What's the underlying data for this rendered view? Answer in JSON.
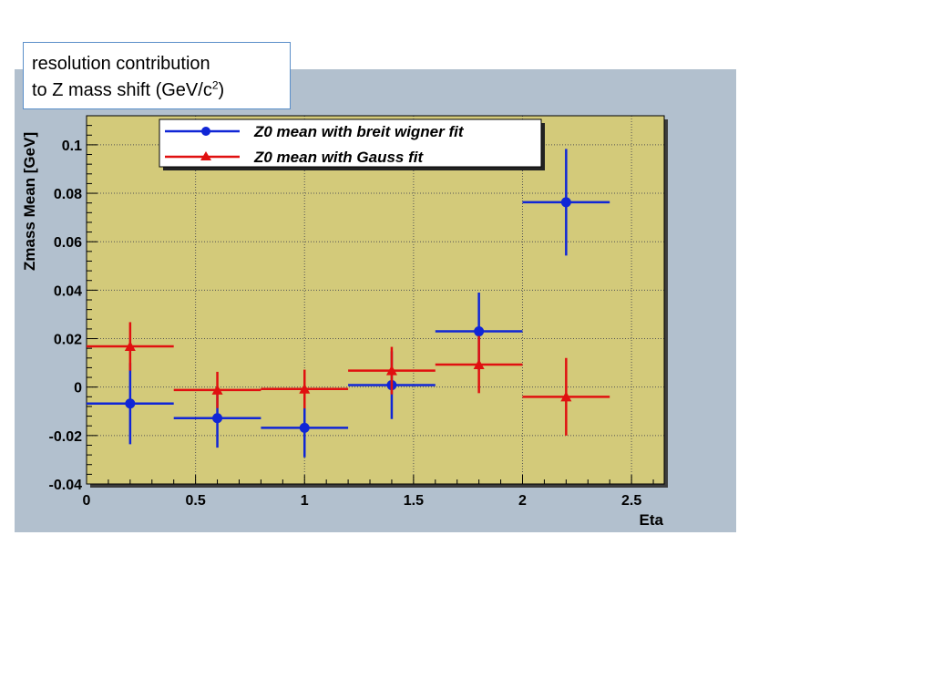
{
  "callout": {
    "line1": "resolution contribution",
    "line2_pre": "to Z mass shift (GeV/c",
    "line2_sup": "2",
    "line2_post": ")"
  },
  "colors": {
    "frame": "#b2c0ce",
    "plot_bg": "#d3ca7a",
    "blue": "#1026d6",
    "red": "#e01010"
  },
  "chart_data": {
    "type": "scatter",
    "xlabel": "Eta",
    "ylabel": "Zmass Mean [GeV]",
    "xlim": [
      0,
      2.65
    ],
    "ylim": [
      -0.04,
      0.112
    ],
    "xticks": [
      0,
      0.5,
      1,
      1.5,
      2,
      2.5
    ],
    "xtick_labels": [
      "0",
      "0.5",
      "1",
      "1.5",
      "2",
      "2.5"
    ],
    "yticks": [
      -0.04,
      -0.02,
      0,
      0.02,
      0.04,
      0.06,
      0.08,
      0.1
    ],
    "ytick_labels": [
      "-0.04",
      "-0.02",
      "0",
      "0.02",
      "0.04",
      "0.06",
      "0.08",
      "0.1"
    ],
    "grid": true,
    "legend_position": "top",
    "series": [
      {
        "name": "Z0 mean with breit wigner fit",
        "marker": "circle",
        "x": [
          0.2,
          0.6,
          1.0,
          1.4,
          1.8,
          2.2
        ],
        "x_err": [
          0.2,
          0.2,
          0.2,
          0.2,
          0.2,
          0.2
        ],
        "y": [
          -0.0068,
          -0.0128,
          -0.0168,
          0.0008,
          0.023,
          0.0763
        ],
        "y_err": [
          0.0168,
          0.0122,
          0.0122,
          0.014,
          0.016,
          0.022
        ]
      },
      {
        "name": "Z0 mean with Gauss fit",
        "marker": "triangle",
        "x": [
          0.2,
          0.6,
          1.0,
          1.4,
          1.8,
          2.2
        ],
        "x_err": [
          0.2,
          0.2,
          0.2,
          0.2,
          0.2,
          0.2
        ],
        "y": [
          0.0168,
          -0.0012,
          -0.0008,
          0.0068,
          0.0093,
          -0.004
        ],
        "y_err": [
          0.01,
          0.0075,
          0.008,
          0.0098,
          0.0118,
          0.016
        ]
      }
    ]
  }
}
